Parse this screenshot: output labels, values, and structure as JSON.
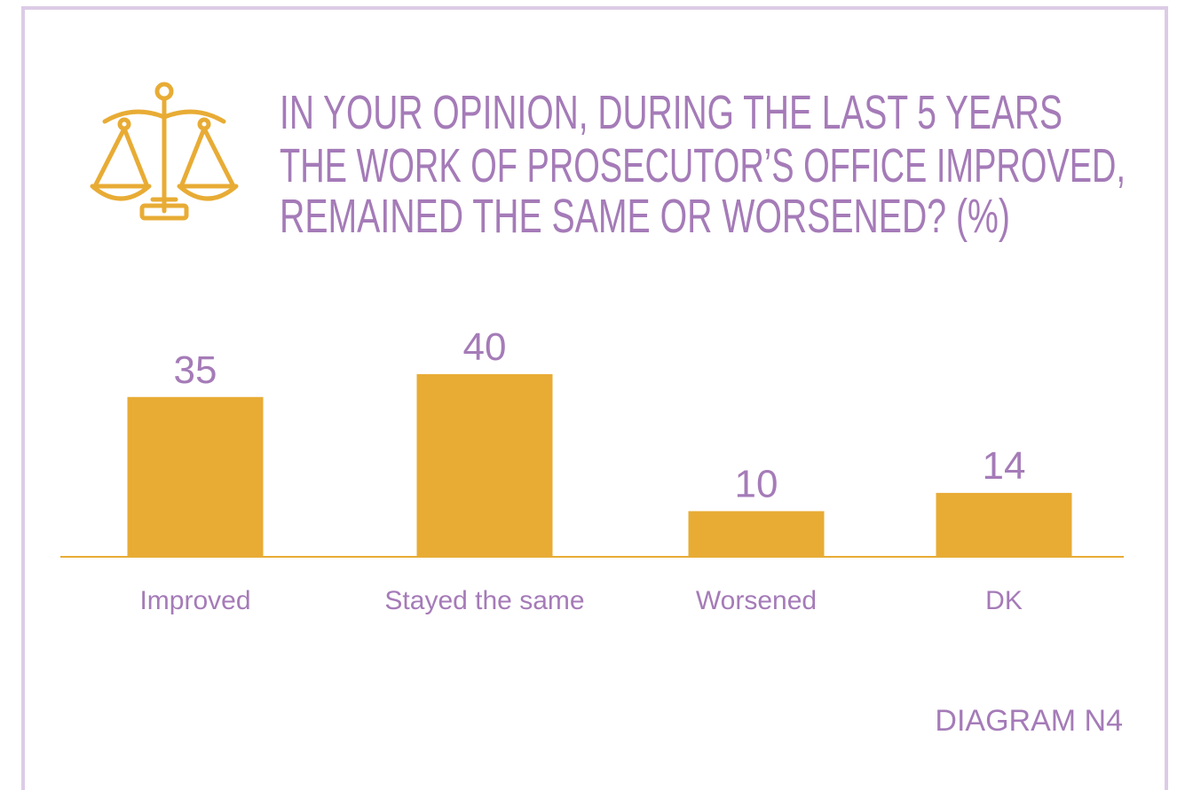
{
  "chart_data": {
    "type": "bar",
    "title": [
      "IN YOUR OPINION, DURING THE LAST 5 YEARS",
      "THE WORK OF PROSECUTOR’S OFFICE IMPROVED,",
      "REMAINED THE SAME OR WORSENED? (%)"
    ],
    "categories": [
      "Improved",
      "Stayed the same",
      "Worsened",
      "DK"
    ],
    "values": [
      35,
      40,
      10,
      14
    ],
    "color": "#e8ac35",
    "annotation": "DIAGRAM N4"
  }
}
